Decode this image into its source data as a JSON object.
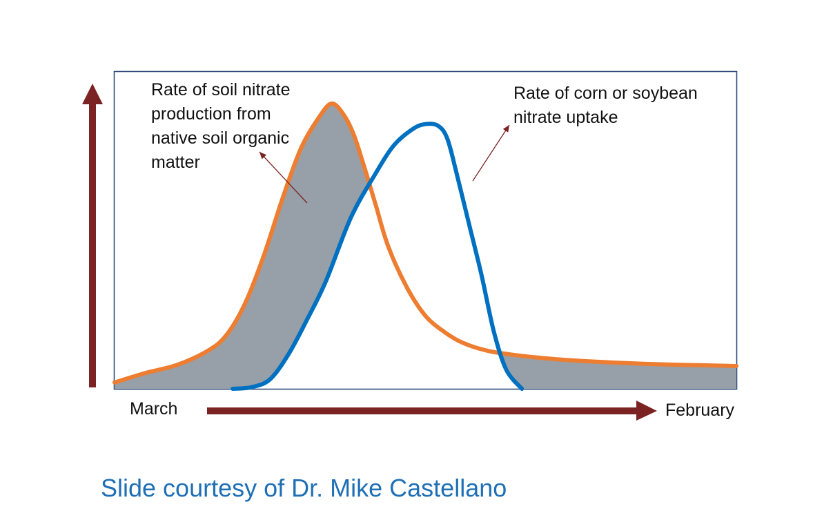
{
  "chart_data": {
    "type": "area",
    "title": "",
    "xlabel": "",
    "ylabel": "",
    "x_start_label": "March",
    "x_end_label": "February",
    "xlim": [
      0,
      100
    ],
    "ylim": [
      0,
      100
    ],
    "grid": false,
    "legend": "none",
    "series": [
      {
        "color": "#ED7D31",
        "label_lines": [
          "Rate of soil nitrate",
          "production from",
          "native soil organic",
          "matter"
        ],
        "x": [
          0,
          5,
          10,
          15,
          18,
          21,
          24,
          27,
          30,
          33,
          35,
          37,
          38.5,
          40,
          42,
          44,
          47,
          50,
          53,
          56,
          60,
          65,
          70,
          75,
          80,
          85,
          90,
          95,
          100
        ],
        "y": [
          2,
          5,
          7.5,
          12,
          17,
          27,
          42,
          60,
          76,
          86,
          90,
          86,
          80,
          71,
          58,
          45,
          32,
          23,
          18,
          14.5,
          12,
          10.5,
          9.5,
          8.8,
          8.3,
          7.9,
          7.6,
          7.4,
          7.2
        ]
      },
      {
        "color": "#0070C0",
        "label_lines": [
          "Rate of corn or soybean",
          "nitrate uptake"
        ],
        "x": [
          19,
          22,
          25,
          28,
          31,
          34,
          38,
          42,
          45,
          48,
          50,
          52,
          53.5,
          55,
          57,
          59,
          61,
          63,
          65.5
        ],
        "y": [
          0,
          0.5,
          3,
          11,
          22,
          34,
          54,
          68,
          77,
          82,
          83.5,
          83,
          79,
          68,
          52,
          36,
          18,
          6,
          0
        ]
      }
    ],
    "shaded_region_color": "#97A0A8"
  },
  "credit": {
    "text": "Slide courtesy of Dr. Mike Castellano",
    "color": "#1F6FB5"
  },
  "colors": {
    "arrow": "#7B2323",
    "frame": "#2E4A7A"
  }
}
